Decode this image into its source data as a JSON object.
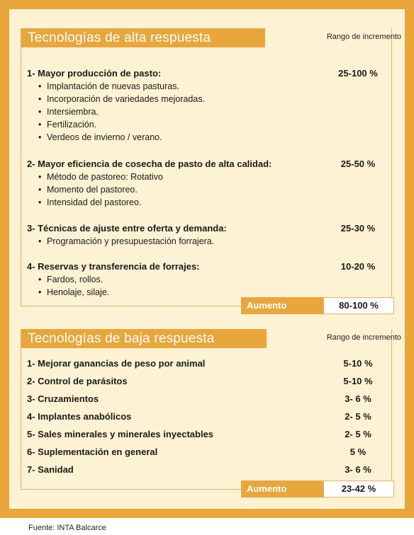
{
  "alta": {
    "title": "Tecnologías de alta respuesta",
    "range_label": "Rango de incremento",
    "groups": [
      {
        "title": "1- Mayor producción de pasto:",
        "value": "25-100 %",
        "items": [
          "Implantación de nuevas pasturas.",
          "Incorporación de variedades mejoradas.",
          "Intersiembra.",
          "Fertilización.",
          "Verdeos de invierno / verano."
        ]
      },
      {
        "title": "2- Mayor eficiencia de cosecha de pasto de alta calidad:",
        "value": "25-50 %",
        "items": [
          "Método de pastoreo: Rotativo",
          "Momento del pastoreo.",
          "Intensidad del pastoreo."
        ]
      },
      {
        "title": "3- Técnicas de ajuste entre oferta y demanda:",
        "value": "25-30 %",
        "items": [
          "Programación y presupuestación forrajera."
        ]
      },
      {
        "title": "4- Reservas y transferencia de forrajes:",
        "value": "10-20 %",
        "items": [
          "Fardos, rollos.",
          "Henolaje, silaje."
        ]
      }
    ],
    "total_label": "Aumento",
    "total_value": "80-100 %"
  },
  "baja": {
    "title": "Tecnologías de baja respuesta",
    "range_label": "Rango de incremento",
    "rows": [
      {
        "label": "1- Mejorar ganancias de peso por animal",
        "value": "5-10 %"
      },
      {
        "label": "2- Control de parásitos",
        "value": "5-10 %"
      },
      {
        "label": "3- Cruzamientos",
        "value": "3- 6 %"
      },
      {
        "label": "4- Implantes anabólicos",
        "value": "2- 5 %"
      },
      {
        "label": "5- Sales minerales y minerales inyectables",
        "value": "2- 5 %"
      },
      {
        "label": "6- Suplementación en general",
        "value": "5 %"
      },
      {
        "label": "7- Sanidad",
        "value": "3- 6 %"
      }
    ],
    "total_label": "Aumento",
    "total_value": "23-42 %"
  },
  "source": "Fuente: INTA Balcarce",
  "colors": {
    "accent": "#e8a63b",
    "background": "#fdf2d3"
  }
}
